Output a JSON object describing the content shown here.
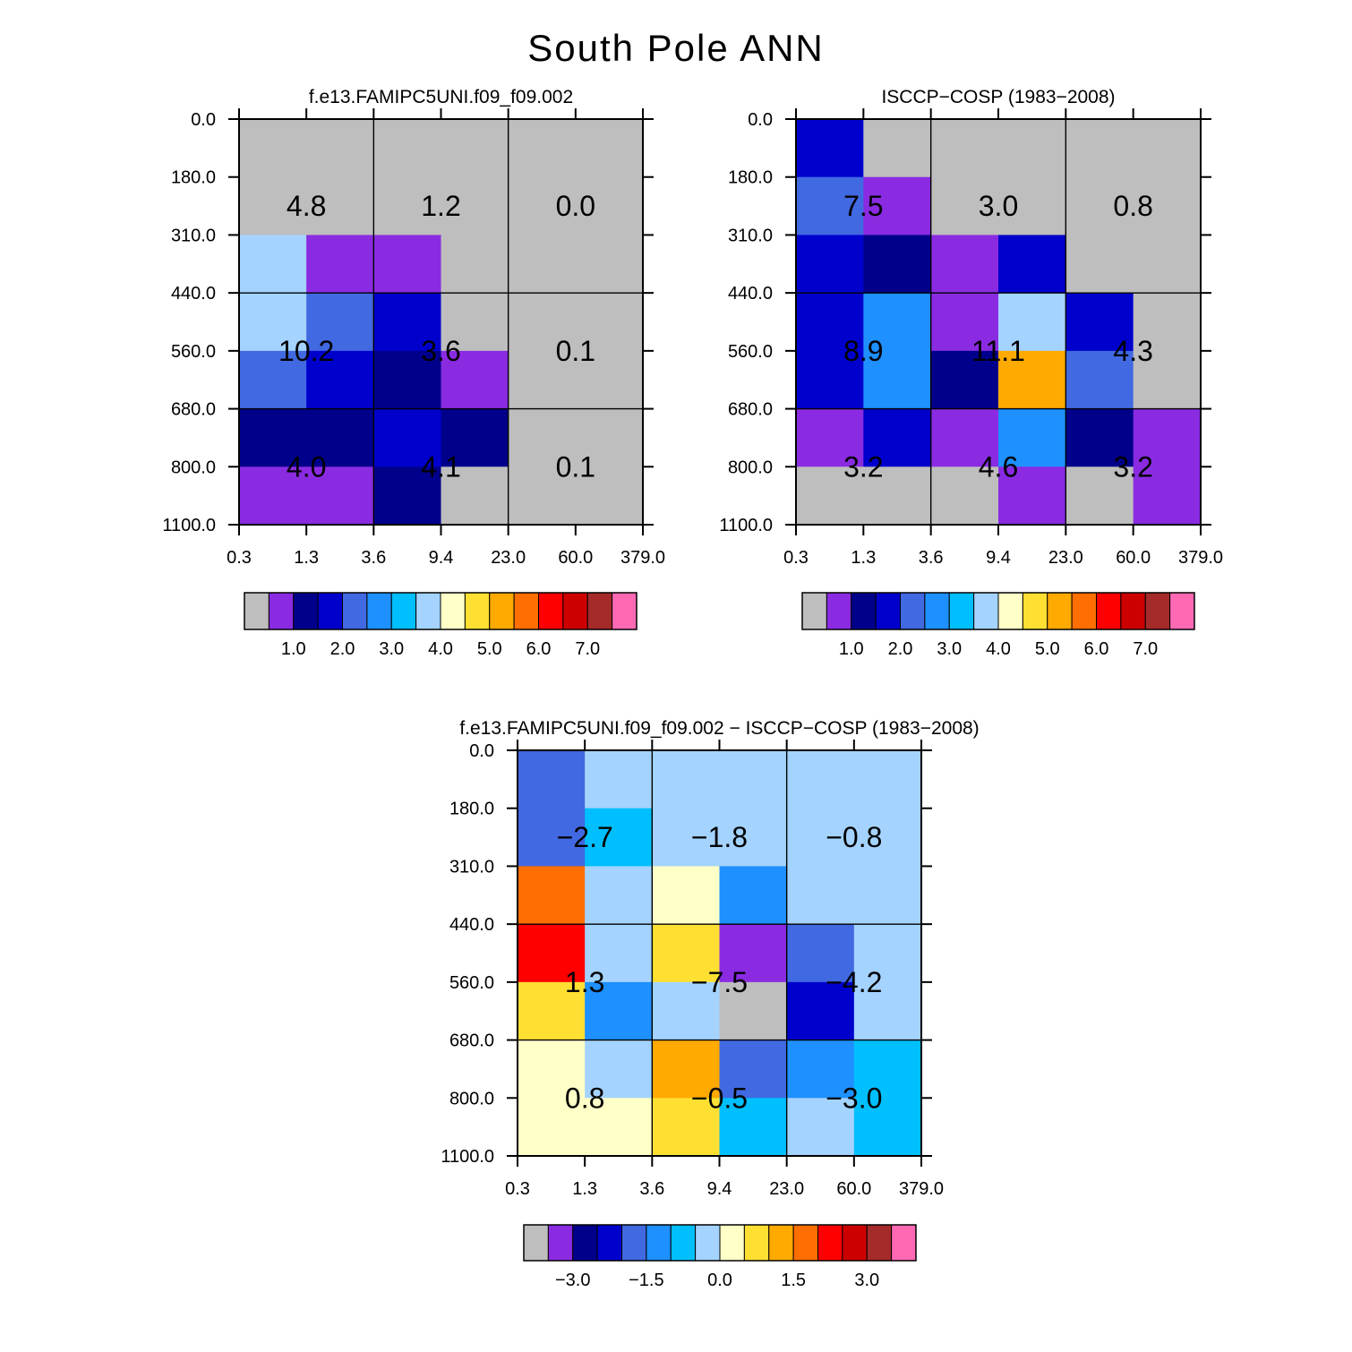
{
  "page_title": "South Pole ANN",
  "colors": {
    "palette_main": [
      "#bebebe",
      "#8a2be2",
      "#00008b",
      "#0000cd",
      "#4169e1",
      "#1e90ff",
      "#00bfff",
      "#a4d3ff",
      "#ffffc8",
      "#ffe032",
      "#ffaa00",
      "#ff6e00",
      "#ff0000",
      "#cd0000",
      "#a52a2a",
      "#ff69b4"
    ],
    "grid_line": "#000000",
    "text": "#000000"
  },
  "chart_data": [
    {
      "type": "heatmap",
      "title": "f.e13.FAMIPC5UNI.f09_f09.002",
      "x_ticks": [
        "0.3",
        "1.3",
        "3.6",
        "9.4",
        "23.0",
        "60.0",
        "379.0"
      ],
      "y_ticks": [
        "0.0",
        "180.0",
        "310.0",
        "440.0",
        "560.0",
        "680.0",
        "800.0",
        "1100.0"
      ],
      "cells_color_index": [
        [
          0,
          0,
          0,
          0,
          0,
          0
        ],
        [
          0,
          0,
          0,
          0,
          0,
          0
        ],
        [
          7,
          1,
          1,
          0,
          0,
          0
        ],
        [
          7,
          4,
          3,
          0,
          0,
          0
        ],
        [
          4,
          3,
          2,
          1,
          0,
          0
        ],
        [
          2,
          2,
          3,
          2,
          0,
          0
        ],
        [
          1,
          1,
          2,
          0,
          0,
          0
        ]
      ],
      "box_labels": [
        [
          "4.8",
          "1.2",
          "0.0"
        ],
        [
          "10.2",
          "3.6",
          "0.1"
        ],
        [
          "4.0",
          "4.1",
          "0.1"
        ]
      ],
      "colorbar_labels": [
        "1.0",
        "2.0",
        "3.0",
        "4.0",
        "5.0",
        "6.0",
        "7.0"
      ]
    },
    {
      "type": "heatmap",
      "title": "ISCCP−COSP (1983−2008)",
      "x_ticks": [
        "0.3",
        "1.3",
        "3.6",
        "9.4",
        "23.0",
        "60.0",
        "379.0"
      ],
      "y_ticks": [
        "0.0",
        "180.0",
        "310.0",
        "440.0",
        "560.0",
        "680.0",
        "800.0",
        "1100.0"
      ],
      "cells_color_index": [
        [
          3,
          0,
          0,
          0,
          0,
          0
        ],
        [
          4,
          1,
          0,
          0,
          0,
          0
        ],
        [
          3,
          2,
          1,
          3,
          0,
          0
        ],
        [
          3,
          5,
          1,
          7,
          3,
          0
        ],
        [
          3,
          5,
          2,
          10,
          4,
          0
        ],
        [
          1,
          3,
          1,
          5,
          2,
          1
        ],
        [
          0,
          0,
          0,
          1,
          0,
          1
        ]
      ],
      "box_labels": [
        [
          "7.5",
          "3.0",
          "0.8"
        ],
        [
          "8.9",
          "11.1",
          "4.3"
        ],
        [
          "3.2",
          "4.6",
          "3.2"
        ]
      ],
      "colorbar_labels": [
        "1.0",
        "2.0",
        "3.0",
        "4.0",
        "5.0",
        "6.0",
        "7.0"
      ]
    },
    {
      "type": "heatmap",
      "title": "f.e13.FAMIPC5UNI.f09_f09.002 − ISCCP−COSP (1983−2008)",
      "x_ticks": [
        "0.3",
        "1.3",
        "3.6",
        "9.4",
        "23.0",
        "60.0",
        "379.0"
      ],
      "y_ticks": [
        "0.0",
        "180.0",
        "310.0",
        "440.0",
        "560.0",
        "680.0",
        "800.0",
        "1100.0"
      ],
      "cells_color_index": [
        [
          4,
          7,
          7,
          7,
          7,
          7
        ],
        [
          4,
          6,
          7,
          7,
          7,
          7
        ],
        [
          11,
          7,
          8,
          5,
          7,
          7
        ],
        [
          12,
          7,
          9,
          1,
          4,
          7
        ],
        [
          9,
          5,
          7,
          0,
          3,
          7
        ],
        [
          8,
          7,
          10,
          4,
          5,
          6
        ],
        [
          8,
          8,
          9,
          6,
          7,
          6
        ]
      ],
      "box_labels": [
        [
          "−2.7",
          "−1.8",
          "−0.8"
        ],
        [
          "1.3",
          "−7.5",
          "−4.2"
        ],
        [
          "0.8",
          "−0.5",
          "−3.0"
        ]
      ],
      "colorbar_labels": [
        "−3.0",
        "−1.5",
        "0.0",
        "1.5",
        "3.0"
      ],
      "colorbar_label_positions": [
        1.5,
        4.5,
        7.5,
        10.5,
        13.5
      ]
    }
  ]
}
